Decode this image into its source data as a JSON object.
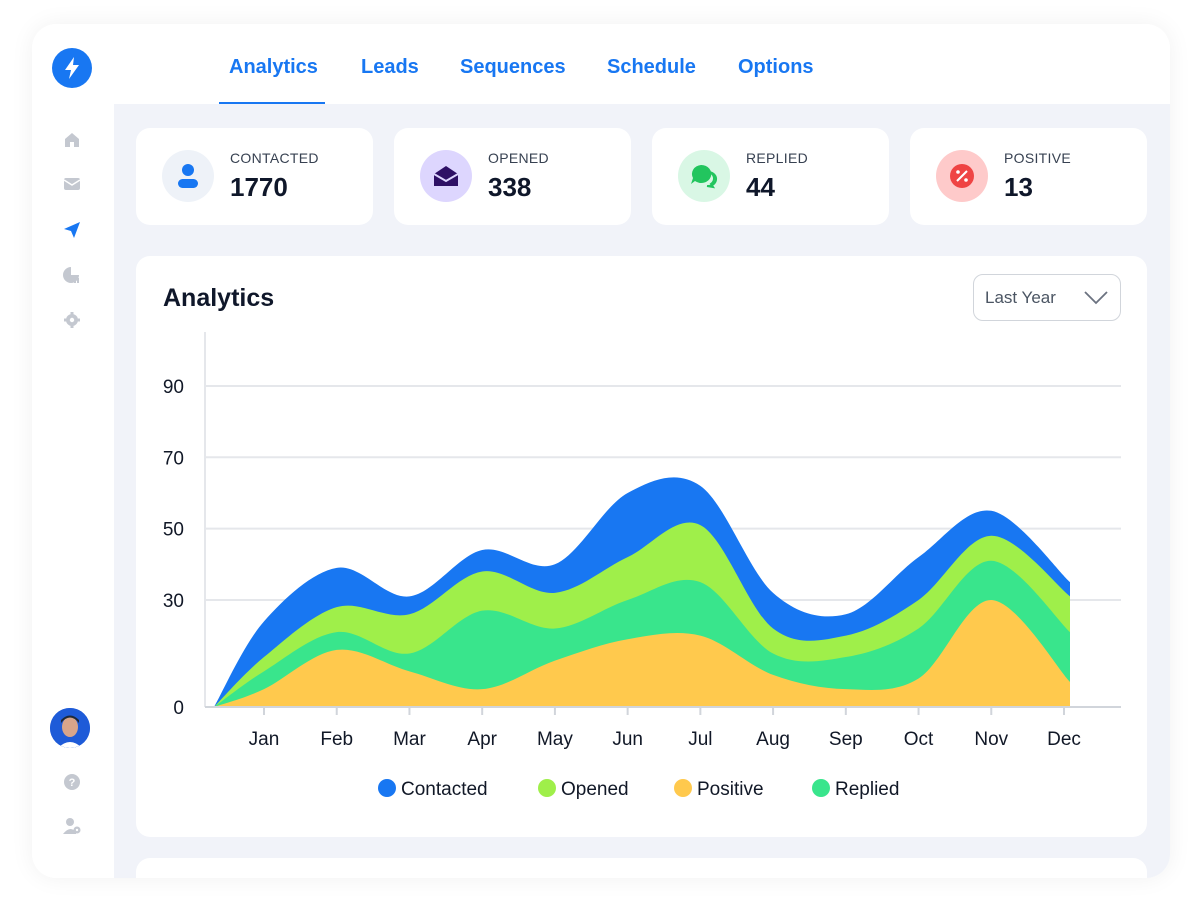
{
  "nav": {
    "tabs": [
      {
        "label": "Analytics",
        "active": true
      },
      {
        "label": "Leads"
      },
      {
        "label": "Sequences"
      },
      {
        "label": "Schedule"
      },
      {
        "label": "Options"
      }
    ]
  },
  "sidebar": {
    "icons": [
      "home-icon",
      "mail-icon",
      "send-icon",
      "chart-pie-icon",
      "gear-icon"
    ],
    "bottom_icons": [
      "help-icon",
      "user-settings-icon"
    ]
  },
  "stats": [
    {
      "label": "CONTACTED",
      "value": "1770",
      "icon": "user-icon",
      "color": "#1877f2",
      "bg": "#eef2f8"
    },
    {
      "label": "OPENED",
      "value": "338",
      "icon": "envelope-open-icon",
      "color": "#2e1065",
      "bg": "#ddd6fe"
    },
    {
      "label": "REPLIED",
      "value": "44",
      "icon": "chat-icon",
      "color": "#22c55e",
      "bg": "#d9f7e5"
    },
    {
      "label": "POSITIVE",
      "value": "13",
      "icon": "percent-icon",
      "color": "#ef4444",
      "bg": "#fecaca"
    }
  ],
  "analytics": {
    "title": "Analytics",
    "range": "Last Year"
  },
  "chart_data": {
    "type": "area",
    "title": "Analytics",
    "categories": [
      "Jan",
      "Feb",
      "Mar",
      "Apr",
      "May",
      "Jun",
      "Jul",
      "Aug",
      "Sep",
      "Oct",
      "Nov",
      "Dec"
    ],
    "y_ticks": [
      0,
      30,
      50,
      70,
      90
    ],
    "series": [
      {
        "name": "Positive",
        "color": "#ffc94d",
        "values": [
          5,
          16,
          10,
          5,
          13,
          19,
          20,
          9,
          5,
          8,
          30,
          7
        ]
      },
      {
        "name": "Replied",
        "color": "#39e58c",
        "values": [
          10,
          21,
          15,
          27,
          22,
          30,
          35,
          15,
          14,
          22,
          41,
          21
        ]
      },
      {
        "name": "Opened",
        "color": "#9fef4a",
        "values": [
          14,
          28,
          26,
          38,
          32,
          42,
          51,
          22,
          20,
          30,
          48,
          31
        ]
      },
      {
        "name": "Contacted",
        "color": "#1877f2",
        "values": [
          24,
          39,
          31,
          44,
          40,
          60,
          62,
          32,
          26,
          42,
          55,
          35
        ]
      }
    ],
    "legend": [
      "Contacted",
      "Opened",
      "Positive",
      "Replied"
    ]
  }
}
